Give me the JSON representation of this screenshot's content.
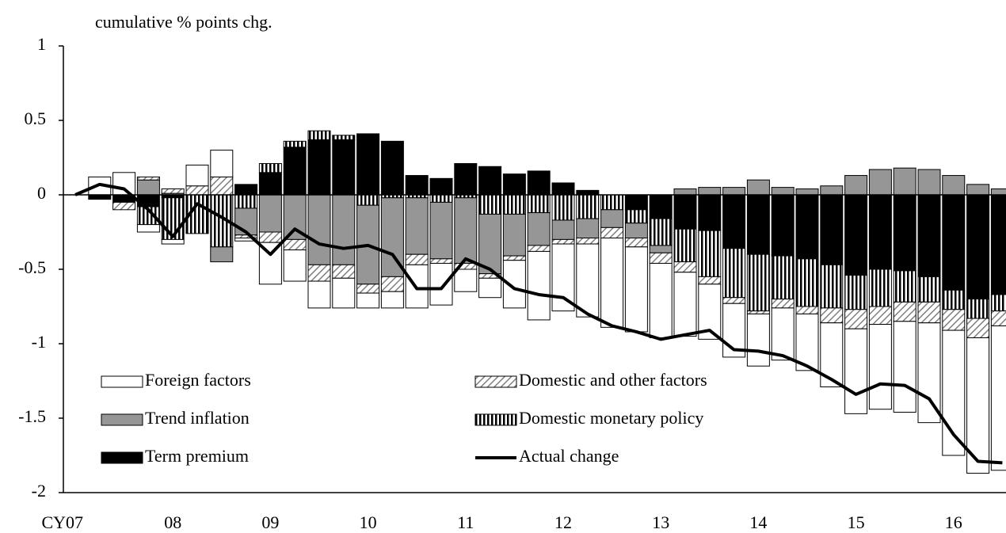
{
  "chart_data": {
    "type": "bar",
    "stacked": true,
    "y_label": "cumulative % points chg.",
    "categories": [
      "CY07",
      null,
      null,
      null,
      "08",
      null,
      null,
      null,
      "09",
      null,
      null,
      null,
      "10",
      null,
      null,
      null,
      "11",
      null,
      null,
      null,
      "12",
      null,
      null,
      null,
      "13",
      null,
      null,
      null,
      "14",
      null,
      null,
      null,
      "15",
      null,
      null,
      null,
      "16",
      null,
      null
    ],
    "ylim": [
      -2,
      1
    ],
    "yticks": [
      1,
      0.5,
      0,
      -0.5,
      -1,
      -1.5,
      -2
    ],
    "grid": false,
    "series": [
      {
        "name": "Term premium",
        "color": "#000000",
        "pattern": "solid",
        "values": [
          null,
          -0.03,
          -0.05,
          -0.08,
          -0.02,
          0,
          0,
          0.07,
          0.15,
          0.32,
          0.37,
          0.37,
          0.41,
          0.36,
          0.13,
          0.11,
          0.21,
          0.19,
          0.14,
          0.16,
          0.08,
          0.03,
          0,
          -0.1,
          -0.16,
          -0.23,
          -0.24,
          -0.36,
          -0.4,
          -0.41,
          -0.43,
          -0.47,
          -0.54,
          -0.5,
          -0.51,
          -0.55,
          -0.64,
          -0.7,
          -0.67
        ]
      },
      {
        "name": "Domestic monetary policy",
        "color": "#000000",
        "pattern": "vertical",
        "values": [
          null,
          0,
          0,
          -0.12,
          -0.28,
          -0.26,
          -0.35,
          -0.09,
          0.06,
          0.04,
          0.06,
          0.03,
          -0.07,
          -0.02,
          -0.02,
          -0.05,
          -0.02,
          -0.13,
          -0.13,
          -0.12,
          -0.17,
          -0.16,
          -0.1,
          -0.09,
          -0.18,
          -0.22,
          -0.31,
          -0.33,
          -0.38,
          -0.29,
          -0.32,
          -0.29,
          -0.23,
          -0.25,
          -0.21,
          -0.17,
          -0.13,
          -0.13,
          -0.11
        ]
      },
      {
        "name": "Trend inflation",
        "color": "#969696",
        "pattern": "solid",
        "values": [
          null,
          0,
          0,
          0.1,
          0.01,
          0,
          -0.1,
          -0.18,
          -0.25,
          -0.3,
          -0.47,
          -0.47,
          -0.53,
          -0.53,
          -0.38,
          -0.38,
          -0.44,
          -0.4,
          -0.28,
          -0.22,
          -0.13,
          -0.13,
          -0.12,
          -0.1,
          -0.05,
          0.04,
          0.05,
          0.05,
          0.1,
          0.05,
          0.04,
          0.06,
          0.13,
          0.17,
          0.18,
          0.17,
          0.13,
          0.07,
          0.04
        ]
      },
      {
        "name": "Domestic and other factors",
        "color": "#808080",
        "pattern": "diagonal",
        "values": [
          null,
          0,
          -0.05,
          0.02,
          0.03,
          0.06,
          0.12,
          -0.02,
          -0.07,
          -0.07,
          -0.11,
          -0.09,
          -0.06,
          -0.1,
          -0.07,
          -0.03,
          -0.04,
          -0.03,
          -0.03,
          -0.04,
          -0.03,
          -0.04,
          -0.07,
          -0.06,
          -0.07,
          -0.07,
          -0.05,
          -0.04,
          -0.02,
          -0.06,
          -0.05,
          -0.1,
          -0.13,
          -0.12,
          -0.13,
          -0.14,
          -0.14,
          -0.13,
          -0.1
        ]
      },
      {
        "name": "Foreign factors",
        "color": "#ffffff",
        "pattern": "solid",
        "values": [
          null,
          0.12,
          0.15,
          -0.05,
          -0.03,
          0.14,
          0.18,
          -0.02,
          -0.28,
          -0.21,
          -0.18,
          -0.2,
          -0.1,
          -0.11,
          -0.29,
          -0.28,
          -0.15,
          -0.13,
          -0.32,
          -0.46,
          -0.45,
          -0.49,
          -0.6,
          -0.57,
          -0.5,
          -0.43,
          -0.37,
          -0.36,
          -0.35,
          -0.35,
          -0.38,
          -0.43,
          -0.57,
          -0.57,
          -0.61,
          -0.67,
          -0.84,
          -0.91,
          -0.97
        ]
      },
      {
        "name": "Actual change",
        "type": "line",
        "color": "#000000",
        "values": [
          0,
          0.07,
          0.04,
          -0.1,
          -0.28,
          -0.06,
          -0.15,
          -0.25,
          -0.4,
          -0.23,
          -0.33,
          -0.36,
          -0.34,
          -0.4,
          -0.63,
          -0.63,
          -0.43,
          -0.5,
          -0.63,
          -0.67,
          -0.69,
          -0.8,
          -0.88,
          -0.92,
          -0.97,
          -0.94,
          -0.91,
          -1.04,
          -1.05,
          -1.08,
          -1.15,
          -1.24,
          -1.34,
          -1.27,
          -1.28,
          -1.37,
          -1.61,
          -1.79,
          -1.8
        ]
      }
    ]
  }
}
